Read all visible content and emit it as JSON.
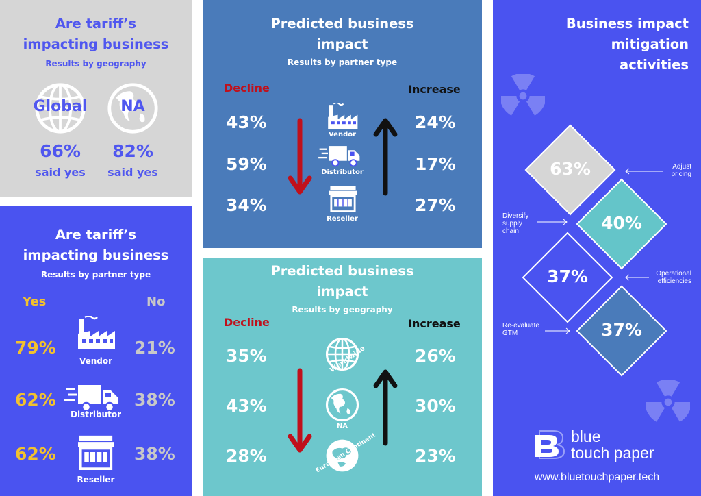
{
  "colors": {
    "grey_panel": "#d6d6d6",
    "purple_blue": "#4a53f0",
    "steel_blue": "#4a7bba",
    "teal": "#6dc7cc",
    "accent_text": "#5057ef",
    "yes_yellow": "#f2c12e",
    "no_grey": "#c8c8c8",
    "decline_red": "#c0101b",
    "increase_black": "#111111",
    "diamond_grey": "#d6d6d6",
    "diamond_teal": "#64c5c9",
    "diamond_blue": "#4a53f0",
    "diamond_steel": "#4a7bba"
  },
  "geo_panel": {
    "title_line1": "Are tariff’s",
    "title_line2": "impacting business",
    "subtitle": "Results by geography",
    "items": [
      {
        "label": "Global",
        "percent": "66%",
        "caption": "said yes",
        "icon": "globe-icon"
      },
      {
        "label": "NA",
        "percent": "82%",
        "caption": "said yes",
        "icon": "north-america-globe-icon"
      }
    ]
  },
  "partner_panel": {
    "title_line1": "Are tariff’s",
    "title_line2": "impacting business",
    "subtitle": "Results by partner type",
    "yes_label": "Yes",
    "no_label": "No",
    "rows": [
      {
        "yes": "79%",
        "no": "21%",
        "label": "Vendor",
        "icon": "factory-icon"
      },
      {
        "yes": "62%",
        "no": "38%",
        "label": "Distributor",
        "icon": "truck-icon"
      },
      {
        "yes": "62%",
        "no": "38%",
        "label": "Reseller",
        "icon": "store-icon"
      }
    ]
  },
  "predicted_partner": {
    "title_line1": "Predicted business",
    "title_line2": "impact",
    "subtitle": "Results by partner type",
    "decline_label": "Decline",
    "increase_label": "Increase",
    "rows": [
      {
        "decline": "43%",
        "increase": "24%",
        "label": "Vendor",
        "icon": "factory-icon"
      },
      {
        "decline": "59%",
        "increase": "17%",
        "label": "Distributor",
        "icon": "truck-icon"
      },
      {
        "decline": "34%",
        "increase": "27%",
        "label": "Reseller",
        "icon": "store-icon"
      }
    ]
  },
  "predicted_geo": {
    "title_line1": "Predicted business",
    "title_line2": "impact",
    "subtitle": "Results by geography",
    "decline_label": "Decline",
    "increase_label": "Increase",
    "rows": [
      {
        "decline": "35%",
        "increase": "26%",
        "label": "Worldwide",
        "icon": "globe-icon"
      },
      {
        "decline": "43%",
        "increase": "30%",
        "label": "NA",
        "icon": "north-america-globe-icon"
      },
      {
        "decline": "28%",
        "increase": "23%",
        "label": "European Continent",
        "icon": "europe-globe-icon"
      }
    ]
  },
  "mitigation": {
    "title_line1": "Business impact",
    "title_line2": "mitigation",
    "title_line3": "activities",
    "diamonds": [
      {
        "value": "63%",
        "label": "Adjust pricing",
        "label_lines": [
          "Adjust",
          "pricing"
        ]
      },
      {
        "value": "40%",
        "label": "Diversify supply chain",
        "label_lines": [
          "Diversify",
          "supply",
          "chain"
        ]
      },
      {
        "value": "37%",
        "label": "Operational efficiencies",
        "label_lines": [
          "Operational",
          "efficiencies"
        ]
      },
      {
        "value": "37%",
        "label": "Re-evaluate GTM",
        "label_lines": [
          "Re-evaluate",
          "GTM"
        ]
      }
    ],
    "brand_line1": "blue",
    "brand_line2": "touch paper",
    "website": "www.bluetouchpaper.tech",
    "decor_icon": "radiation-icon",
    "logo_icon": "bluetouchpaper-logo-icon"
  }
}
